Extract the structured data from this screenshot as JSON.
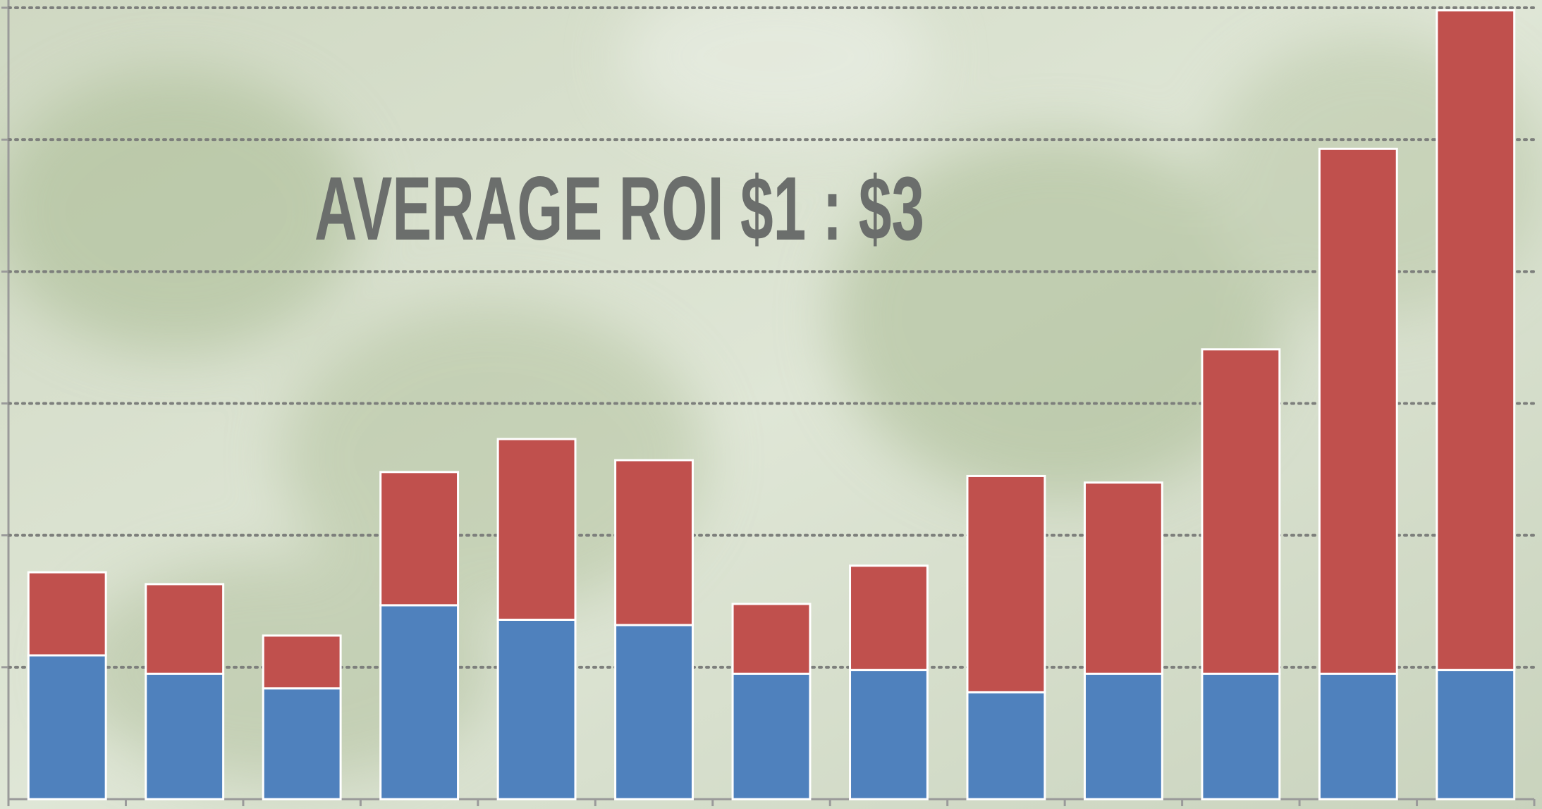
{
  "chart_data": {
    "type": "stacked_bar",
    "title": "AVERAGE ROI $1 : $3",
    "categories": [
      null,
      null,
      null,
      null,
      null,
      null,
      null,
      null,
      null,
      null,
      null,
      null,
      null
    ],
    "series": [
      {
        "color": "#4f81bd",
        "values": [
          1.09,
          0.95,
          0.84,
          1.47,
          1.36,
          1.32,
          0.95,
          0.98,
          0.81,
          0.95,
          0.95,
          0.95,
          0.98
        ]
      },
      {
        "color": "#c0504d",
        "values": [
          0.63,
          0.68,
          0.4,
          1.01,
          1.37,
          1.25,
          0.53,
          0.79,
          1.64,
          1.45,
          2.46,
          3.98,
          5.0
        ]
      }
    ],
    "ylim": [
      0,
      6
    ],
    "yticks": [
      1,
      2,
      3,
      4,
      5,
      6
    ],
    "grid": true
  }
}
